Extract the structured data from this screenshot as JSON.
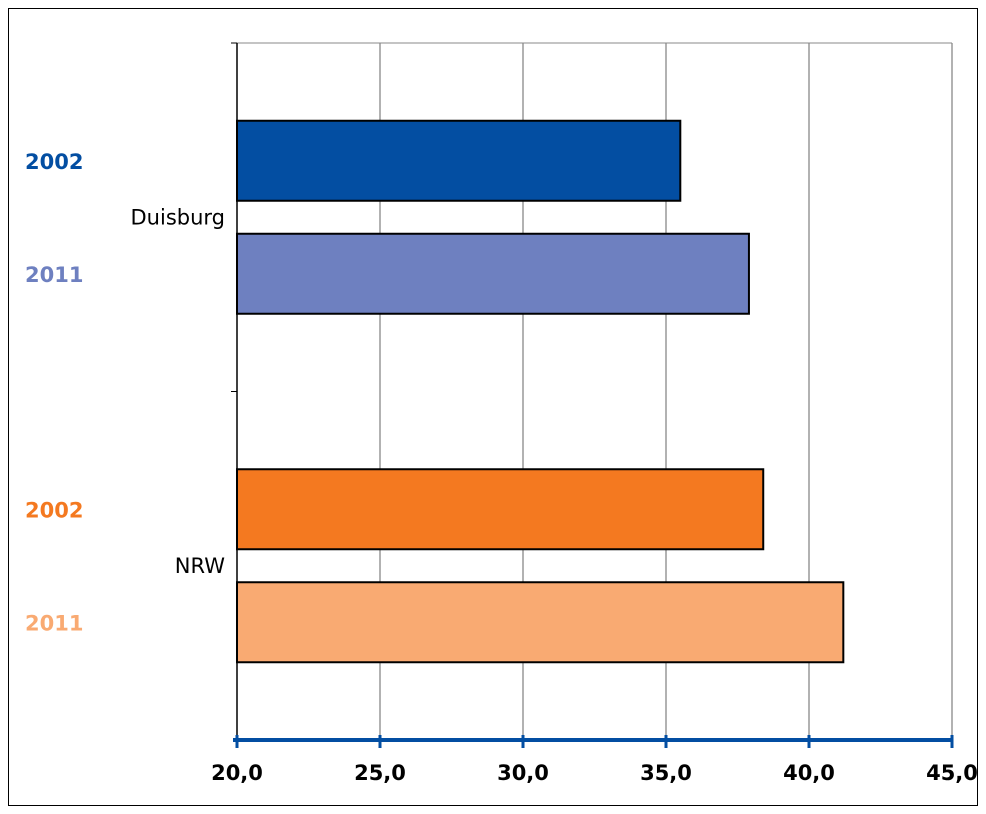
{
  "chart_data": {
    "type": "bar",
    "orientation": "horizontal",
    "categories": [
      "Duisburg",
      "NRW"
    ],
    "series": [
      {
        "name": "2002",
        "values": [
          35.5,
          38.4
        ],
        "colors": [
          "#034EA2",
          "#F47920"
        ]
      },
      {
        "name": "2011",
        "values": [
          37.9,
          41.2
        ],
        "colors": [
          "#6E80C0",
          "#F9AA72"
        ]
      }
    ],
    "series_label_colors": {
      "Duisburg": {
        "2002": "#034EA2",
        "2011": "#6E80C0"
      },
      "NRW": {
        "2002": "#F47920",
        "2011": "#F9AA72"
      }
    },
    "xlim": [
      20,
      45
    ],
    "x_ticks": [
      20,
      25,
      30,
      35,
      40,
      45
    ],
    "x_tick_labels": [
      "20,0",
      "25,0",
      "30,0",
      "35,0",
      "40,0",
      "45,0"
    ],
    "title": "",
    "xlabel": "",
    "ylabel": "",
    "grid": "vertical",
    "axis_color": "#034EA2",
    "bar_outline": "#000000"
  }
}
